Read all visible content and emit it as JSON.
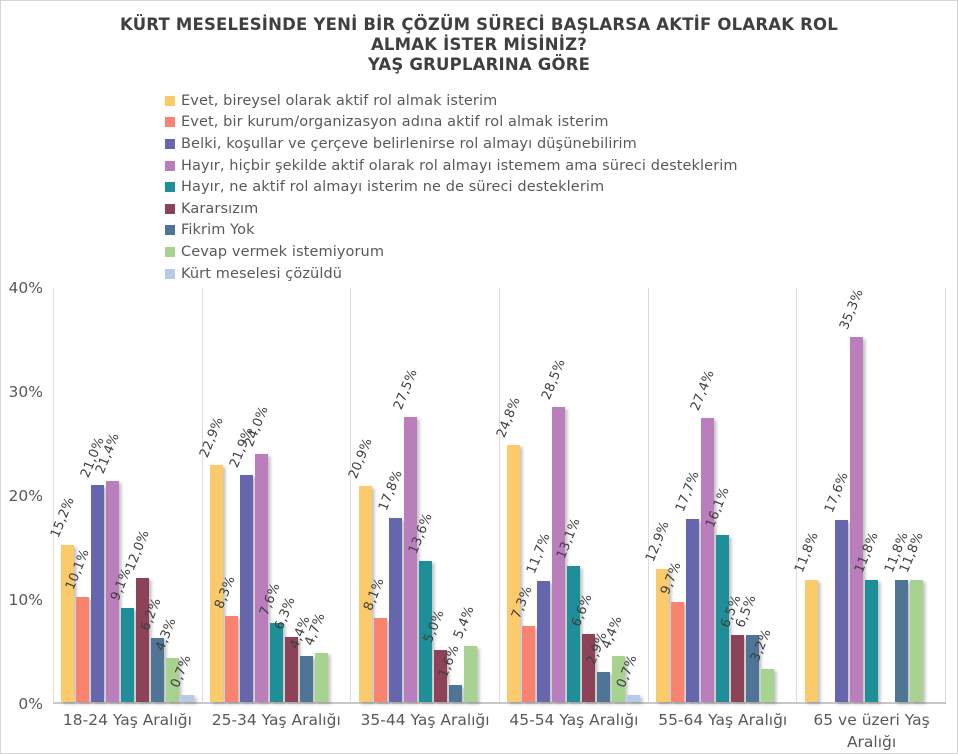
{
  "title": {
    "line1": "KÜRT MESELESİNDE YENİ BİR ÇÖZÜM SÜRECİ BAŞLARSA AKTİF OLARAK ROL",
    "line2": "ALMAK İSTER MİSİNİZ?",
    "line3": "YAŞ GRUPLARINA GÖRE"
  },
  "chart_data": {
    "type": "bar",
    "title": "KÜRT MESELESİNDE YENİ BİR ÇÖZÜM SÜRECİ BAŞLARSA AKTİF OLARAK ROL ALMAK İSTER MİSİNİZ? YAŞ GRUPLARINA GÖRE",
    "xlabel": "",
    "ylabel": "",
    "ylim": [
      0,
      40
    ],
    "y_ticks": [
      "0%",
      "10%",
      "20%",
      "30%",
      "40%"
    ],
    "grid": "no horizontal gridlines; vertical light separators between category panels",
    "legend_position": "top-left, vertical list",
    "value_label_format": "Turkish decimal comma with percent, rotated ~68°, e.g. 15,2%",
    "categories": [
      "18-24 Yaş Aralığı",
      "25-34 Yaş Aralığı",
      "35-44 Yaş Aralığı",
      "45-54 Yaş Aralığı",
      "55-64 Yaş Aralığı",
      "65 ve üzeri Yaş Aralığı"
    ],
    "series": [
      {
        "name": "Evet, bireysel olarak aktif rol almak isterim",
        "color": "#FBCA6B",
        "values": [
          15.2,
          22.9,
          20.9,
          24.8,
          12.9,
          11.8
        ]
      },
      {
        "name": "Evet, bir kurum/organizasyon adına aktif rol almak isterim",
        "color": "#F9836F",
        "values": [
          10.1,
          8.3,
          8.1,
          7.3,
          9.7,
          null
        ]
      },
      {
        "name": "Belki, koşullar ve çerçeve belirlenirse rol almayı düşünebilirim",
        "color": "#6566AD",
        "values": [
          21.0,
          21.9,
          17.8,
          11.7,
          17.7,
          17.6
        ]
      },
      {
        "name": "Hayır, hiçbir şekilde aktif olarak rol almayı istemem ama süreci desteklerim",
        "color": "#BB7EBD",
        "values": [
          21.4,
          24.0,
          27.5,
          28.5,
          27.4,
          35.3
        ]
      },
      {
        "name": "Hayır, ne aktif rol almayı isterim ne de süreci desteklerim",
        "color": "#1E8E99",
        "values": [
          9.1,
          7.6,
          13.6,
          13.1,
          16.1,
          11.8
        ]
      },
      {
        "name": "Kararsızım",
        "color": "#8C4257",
        "values": [
          12.0,
          6.3,
          5.0,
          6.6,
          6.5,
          null
        ]
      },
      {
        "name": "Fikrim Yok",
        "color": "#4E7596",
        "values": [
          6.2,
          4.4,
          1.6,
          2.9,
          6.5,
          11.8
        ]
      },
      {
        "name": "Cevap vermek istemiyorum",
        "color": "#A7D28F",
        "values": [
          4.3,
          4.7,
          5.4,
          4.4,
          3.2,
          11.8
        ]
      },
      {
        "name": "Kürt meselesi çözüldü",
        "color": "#B6CBEA",
        "values": [
          0.7,
          null,
          null,
          0.7,
          null,
          null
        ]
      }
    ]
  }
}
